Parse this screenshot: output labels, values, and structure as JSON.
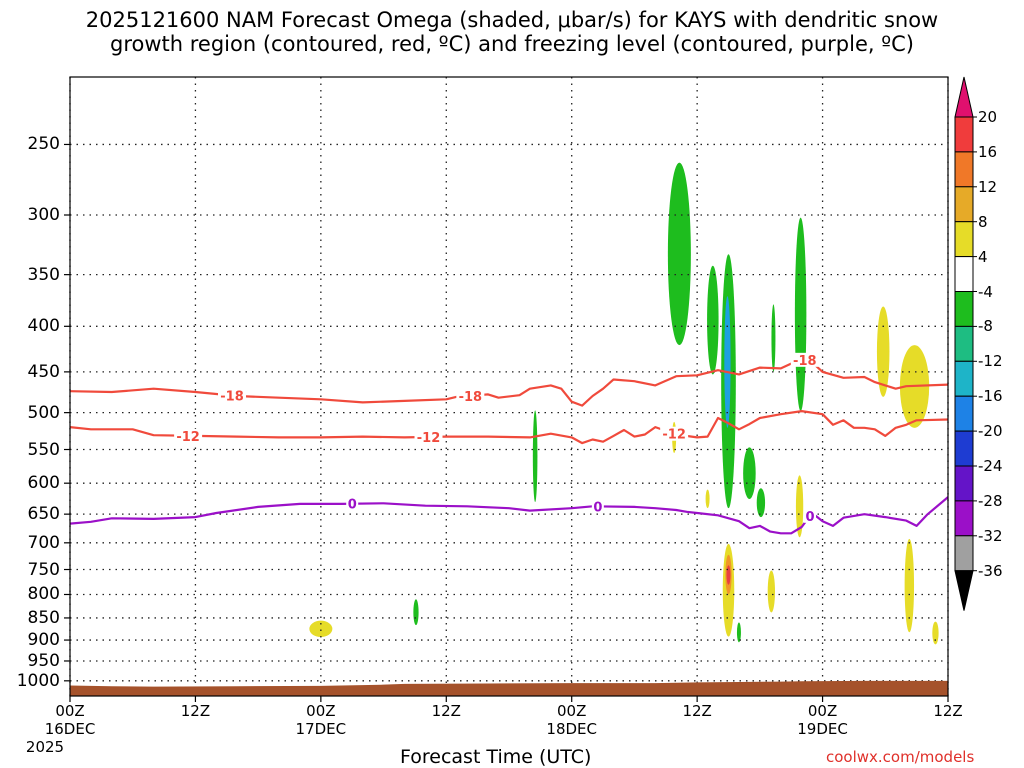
{
  "title_line1": "2025121600 NAM Forecast Omega (shaded, μbar/s) for KAYS with dendritic snow",
  "title_line2": "growth region (contoured, red, ºC) and freezing level (contoured, purple, ºC)",
  "credit": "coolwx.com/models",
  "chart_data": {
    "type": "time-height cross section",
    "xlabel": "Forecast Time (UTC)",
    "ylabel": "",
    "y_axis": "pressure (hPa), inverted",
    "ylim": [
      1040,
      210
    ],
    "yticks": [
      250,
      300,
      350,
      400,
      450,
      500,
      550,
      600,
      650,
      700,
      750,
      800,
      850,
      900,
      950,
      1000
    ],
    "xlim_hours": [
      0,
      84
    ],
    "xticks": [
      {
        "hour": 0,
        "label": "00Z",
        "sub": "16DEC",
        "sub2": "2025"
      },
      {
        "hour": 12,
        "label": "12Z",
        "sub": "",
        "sub2": ""
      },
      {
        "hour": 24,
        "label": "00Z",
        "sub": "17DEC",
        "sub2": ""
      },
      {
        "hour": 36,
        "label": "12Z",
        "sub": "",
        "sub2": ""
      },
      {
        "hour": 48,
        "label": "00Z",
        "sub": "18DEC",
        "sub2": ""
      },
      {
        "hour": 60,
        "label": "12Z",
        "sub": "",
        "sub2": ""
      },
      {
        "hour": 72,
        "label": "00Z",
        "sub": "19DEC",
        "sub2": ""
      },
      {
        "hour": 84,
        "label": "12Z",
        "sub": "",
        "sub2": ""
      }
    ],
    "grid": true,
    "contours": [
      {
        "label": "-18",
        "color": "#f04a3c",
        "points": [
          [
            0,
            473
          ],
          [
            4,
            474
          ],
          [
            8,
            470
          ],
          [
            12,
            474
          ],
          [
            16,
            479
          ],
          [
            20,
            481
          ],
          [
            24,
            483
          ],
          [
            28,
            487
          ],
          [
            32,
            485
          ],
          [
            36,
            483
          ],
          [
            37,
            480
          ],
          [
            39,
            478
          ],
          [
            40,
            477
          ],
          [
            41,
            481
          ],
          [
            43,
            478
          ],
          [
            44,
            470
          ],
          [
            46,
            466
          ],
          [
            47,
            470
          ],
          [
            48,
            486
          ],
          [
            49,
            491
          ],
          [
            50,
            479
          ],
          [
            51,
            470
          ],
          [
            52,
            459
          ],
          [
            54,
            461
          ],
          [
            56,
            466
          ],
          [
            58,
            455
          ],
          [
            60,
            454
          ],
          [
            62,
            448
          ],
          [
            64,
            453
          ],
          [
            66,
            445
          ],
          [
            68,
            446
          ],
          [
            70,
            435
          ],
          [
            71,
            439
          ],
          [
            72,
            450
          ],
          [
            74,
            457
          ],
          [
            76,
            456
          ],
          [
            77,
            462
          ],
          [
            78,
            466
          ],
          [
            79,
            470
          ],
          [
            80,
            467
          ],
          [
            84,
            465
          ]
        ],
        "label_hours": [
          15.5,
          38.3,
          70.3
        ]
      },
      {
        "label": "-12",
        "color": "#f04a3c",
        "points": [
          [
            0,
            519
          ],
          [
            2,
            522
          ],
          [
            6,
            522
          ],
          [
            8,
            530
          ],
          [
            12,
            531
          ],
          [
            16,
            532
          ],
          [
            20,
            533
          ],
          [
            24,
            533
          ],
          [
            28,
            532
          ],
          [
            32,
            533
          ],
          [
            36,
            532
          ],
          [
            40,
            532
          ],
          [
            44,
            533
          ],
          [
            46,
            528
          ],
          [
            48,
            533
          ],
          [
            49,
            541
          ],
          [
            50,
            536
          ],
          [
            51,
            539
          ],
          [
            52,
            531
          ],
          [
            53,
            523
          ],
          [
            54,
            532
          ],
          [
            55,
            529
          ],
          [
            56,
            519
          ],
          [
            58,
            529
          ],
          [
            60,
            533
          ],
          [
            61,
            532
          ],
          [
            62,
            507
          ],
          [
            63,
            514
          ],
          [
            64,
            522
          ],
          [
            65,
            515
          ],
          [
            66,
            507
          ],
          [
            68,
            502
          ],
          [
            70,
            498
          ],
          [
            72,
            502
          ],
          [
            73,
            516
          ],
          [
            74,
            510
          ],
          [
            75,
            520
          ],
          [
            76,
            520
          ],
          [
            77,
            522
          ],
          [
            78,
            531
          ],
          [
            79,
            520
          ],
          [
            80,
            516
          ],
          [
            81,
            510
          ],
          [
            84,
            509
          ]
        ],
        "label_hours": [
          11.3,
          34.3,
          57.8
        ]
      },
      {
        "label": "0",
        "color": "#9b10c8",
        "points": [
          [
            0,
            666
          ],
          [
            2,
            663
          ],
          [
            4,
            657
          ],
          [
            8,
            658
          ],
          [
            12,
            655
          ],
          [
            14,
            648
          ],
          [
            18,
            638
          ],
          [
            22,
            633
          ],
          [
            26,
            633
          ],
          [
            30,
            632
          ],
          [
            34,
            636
          ],
          [
            38,
            637
          ],
          [
            42,
            640
          ],
          [
            44,
            644
          ],
          [
            48,
            640
          ],
          [
            50,
            637
          ],
          [
            54,
            638
          ],
          [
            56,
            640
          ],
          [
            58,
            643
          ],
          [
            59,
            646
          ],
          [
            60,
            648
          ],
          [
            62,
            652
          ],
          [
            64,
            662
          ],
          [
            65,
            674
          ],
          [
            66,
            670
          ],
          [
            67,
            680
          ],
          [
            68,
            683
          ],
          [
            69,
            683
          ],
          [
            70,
            672
          ],
          [
            71,
            648
          ],
          [
            72,
            662
          ],
          [
            73,
            670
          ],
          [
            74,
            656
          ],
          [
            76,
            650
          ],
          [
            78,
            655
          ],
          [
            80,
            661
          ],
          [
            81,
            670
          ],
          [
            82,
            651
          ],
          [
            84,
            622
          ]
        ],
        "label_hours": [
          27,
          50.5,
          70.8
        ]
      }
    ],
    "shaded_areas": [
      {
        "color": "#1ebd1e",
        "hour": 58.3,
        "p_top": 262,
        "p_bottom": 420,
        "half_width_hours": 1.1
      },
      {
        "color": "#1ebd1e",
        "hour": 61.5,
        "p_top": 342,
        "p_bottom": 453,
        "half_width_hours": 0.55
      },
      {
        "color": "#1ebd1e",
        "hour": 63.0,
        "p_top": 332,
        "p_bottom": 640,
        "half_width_hours": 0.7
      },
      {
        "color": "#1ea0e0",
        "hour": 62.9,
        "p_top": 370,
        "p_bottom": 520,
        "half_width_hours": 0.3
      },
      {
        "color": "#1ebd1e",
        "hour": 65.0,
        "p_top": 547,
        "p_bottom": 625,
        "half_width_hours": 0.6
      },
      {
        "color": "#1ebd1e",
        "hour": 66.1,
        "p_top": 608,
        "p_bottom": 655,
        "half_width_hours": 0.4
      },
      {
        "color": "#1ebd1e",
        "hour": 67.3,
        "p_top": 378,
        "p_bottom": 450,
        "half_width_hours": 0.18
      },
      {
        "color": "#1ebd1e",
        "hour": 69.9,
        "p_top": 302,
        "p_bottom": 498,
        "half_width_hours": 0.55
      },
      {
        "color": "#1ebd1e",
        "hour": 44.5,
        "p_top": 497,
        "p_bottom": 630,
        "half_width_hours": 0.22
      },
      {
        "color": "#1ebd1e",
        "hour": 33.1,
        "p_top": 810,
        "p_bottom": 866,
        "half_width_hours": 0.25
      },
      {
        "color": "#e6dc28",
        "hour": 24.0,
        "p_top": 856,
        "p_bottom": 893,
        "half_width_hours": 1.1
      },
      {
        "color": "#e6dc28",
        "hour": 77.8,
        "p_top": 380,
        "p_bottom": 480,
        "half_width_hours": 0.6
      },
      {
        "color": "#e6dc28",
        "hour": 80.8,
        "p_top": 420,
        "p_bottom": 520,
        "half_width_hours": 1.4
      },
      {
        "color": "#e6dc28",
        "hour": 80.3,
        "p_top": 693,
        "p_bottom": 882,
        "half_width_hours": 0.45
      },
      {
        "color": "#e6dc28",
        "hour": 82.8,
        "p_top": 858,
        "p_bottom": 910,
        "half_width_hours": 0.3
      },
      {
        "color": "#e6dc28",
        "hour": 69.8,
        "p_top": 588,
        "p_bottom": 690,
        "half_width_hours": 0.35
      },
      {
        "color": "#e6dc28",
        "hour": 67.1,
        "p_top": 752,
        "p_bottom": 838,
        "half_width_hours": 0.35
      },
      {
        "color": "#e6dc28",
        "hour": 63.0,
        "p_top": 702,
        "p_bottom": 892,
        "half_width_hours": 0.55
      },
      {
        "color": "#f09628",
        "hour": 63.0,
        "p_top": 722,
        "p_bottom": 800,
        "half_width_hours": 0.3
      },
      {
        "color": "#e84040",
        "hour": 63.0,
        "p_top": 742,
        "p_bottom": 780,
        "half_width_hours": 0.16
      },
      {
        "color": "#e6dc28",
        "hour": 57.8,
        "p_top": 512,
        "p_bottom": 555,
        "half_width_hours": 0.18
      },
      {
        "color": "#e6dc28",
        "hour": 61.0,
        "p_top": 610,
        "p_bottom": 640,
        "half_width_hours": 0.18
      },
      {
        "color": "#1ebd1e",
        "hour": 64.0,
        "p_top": 860,
        "p_bottom": 905,
        "half_width_hours": 0.1
      }
    ],
    "terrain_color": "#a5522b",
    "terrain_points": [
      [
        0,
        1012
      ],
      [
        4,
        1014
      ],
      [
        8,
        1015
      ],
      [
        16,
        1014
      ],
      [
        24,
        1013
      ],
      [
        30,
        1010
      ],
      [
        32,
        1008
      ],
      [
        40,
        1007
      ],
      [
        48,
        1006
      ],
      [
        56,
        1006
      ],
      [
        60,
        1004
      ],
      [
        64,
        1003
      ],
      [
        68,
        1002
      ],
      [
        70,
        1001
      ],
      [
        76,
        1000
      ],
      [
        84,
        1000
      ]
    ],
    "colorbar": {
      "levels": [
        20,
        16,
        12,
        8,
        4,
        -4,
        -8,
        -12,
        -16,
        -20,
        -24,
        -28,
        -32,
        -36
      ],
      "colors": [
        "#e0106e",
        "#f03c3c",
        "#f07828",
        "#e6aa28",
        "#e6dc28",
        "#ffffff",
        "#1ebd1e",
        "#1ebd82",
        "#1eb4c8",
        "#1e82e6",
        "#1e3cd2",
        "#6414c8",
        "#9b10c8",
        "#a0a0a0",
        "#000000"
      ]
    }
  }
}
